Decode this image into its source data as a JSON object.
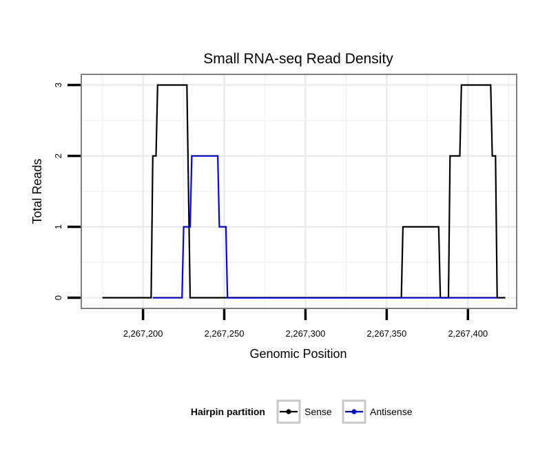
{
  "chart_data": {
    "type": "line",
    "title": "Small RNA-seq Read Density",
    "xlabel": "Genomic Position",
    "ylabel": "Total Reads",
    "xlim": [
      2267162,
      2267430
    ],
    "ylim": [
      -0.15,
      3.15
    ],
    "x_ticks": [
      2267200,
      2267250,
      2267300,
      2267350,
      2267400
    ],
    "x_tick_labels": [
      "2,267,200",
      "2,267,250",
      "2,267,300",
      "2,267,350",
      "2,267,400"
    ],
    "y_ticks": [
      0,
      1,
      2,
      3
    ],
    "y_tick_labels": [
      "0",
      "1",
      "2",
      "3"
    ],
    "grid": true,
    "legend": {
      "title": "Hairpin partition",
      "position": "bottom",
      "entries": [
        "Sense",
        "Antisense"
      ]
    },
    "series": [
      {
        "name": "Sense",
        "color": "#000000",
        "x": [
          2267175,
          2267205,
          2267206,
          2267207,
          2267208,
          2267209,
          2267226,
          2267227,
          2267229,
          2267230,
          2267359,
          2267360,
          2267382,
          2267383,
          2267388,
          2267389,
          2267395,
          2267396,
          2267414,
          2267415,
          2267417,
          2267418,
          2267423
        ],
        "values": [
          0,
          0,
          2,
          2,
          2,
          3,
          3,
          3,
          0,
          0,
          0,
          1,
          1,
          0,
          0,
          2,
          2,
          3,
          3,
          2,
          2,
          0,
          0
        ]
      },
      {
        "name": "Antisense",
        "color": "#0000ff",
        "x": [
          2267206,
          2267224,
          2267225,
          2267228,
          2267229,
          2267230,
          2267246,
          2267247,
          2267250,
          2267251,
          2267252,
          2267382,
          2267383,
          2267388,
          2267389,
          2267417,
          2267418
        ],
        "values": [
          0,
          0,
          1,
          1,
          1,
          2,
          2,
          1,
          1,
          1,
          0,
          0,
          0,
          0,
          0,
          0,
          0
        ]
      }
    ]
  }
}
